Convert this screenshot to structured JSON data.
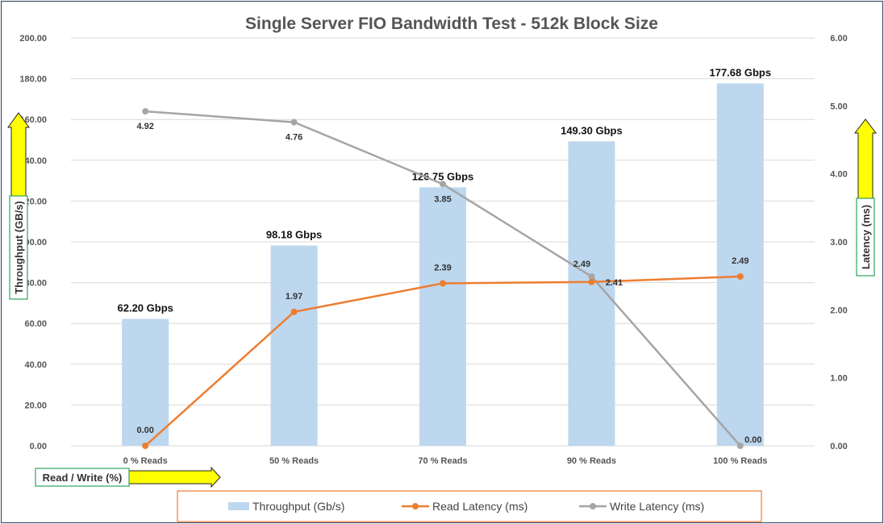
{
  "chart_data": {
    "type": "bar",
    "title": "Single Server FIO Bandwidth Test - 512k Block Size",
    "categories": [
      "0 % Reads",
      "50 % Reads",
      "70 % Reads",
      "90 % Reads",
      "100 % Reads"
    ],
    "xlabel": "Read / Write (%)",
    "ylabel": "Throughput (GB/s)",
    "y2label": "Latency (ms)",
    "ylim": [
      0,
      200
    ],
    "y2lim": [
      0,
      6
    ],
    "yticks": [
      "0.00",
      "20.00",
      "40.00",
      "60.00",
      "80.00",
      "100.00",
      "120.00",
      "140.00",
      "160.00",
      "180.00",
      "200.00"
    ],
    "y2ticks": [
      "0.00",
      "1.00",
      "2.00",
      "3.00",
      "4.00",
      "5.00",
      "6.00"
    ],
    "grid": true,
    "legend_position": "bottom",
    "series": [
      {
        "name": "Throughput (Gb/s)",
        "type": "bar",
        "axis": "left",
        "color": "#bdd7ee",
        "values": [
          62.2,
          98.18,
          126.75,
          149.3,
          177.68
        ],
        "labels": [
          "62.20 Gbps",
          "98.18 Gbps",
          "126.75 Gbps",
          "149.30 Gbps",
          "177.68 Gbps"
        ]
      },
      {
        "name": "Read Latency (ms)",
        "type": "line",
        "axis": "right",
        "color": "#ed7d31",
        "values": [
          0.0,
          1.97,
          2.39,
          2.41,
          2.49
        ],
        "labels": [
          "0.00",
          "1.97",
          "2.39",
          "2.41",
          "2.49"
        ]
      },
      {
        "name": "Write Latency (ms)",
        "type": "line",
        "axis": "right",
        "color": "#a5a5a5",
        "values": [
          4.92,
          4.76,
          3.85,
          2.49,
          0.0
        ],
        "labels": [
          "4.92",
          "4.76",
          "3.85",
          "2.49",
          "0.00"
        ]
      }
    ]
  }
}
